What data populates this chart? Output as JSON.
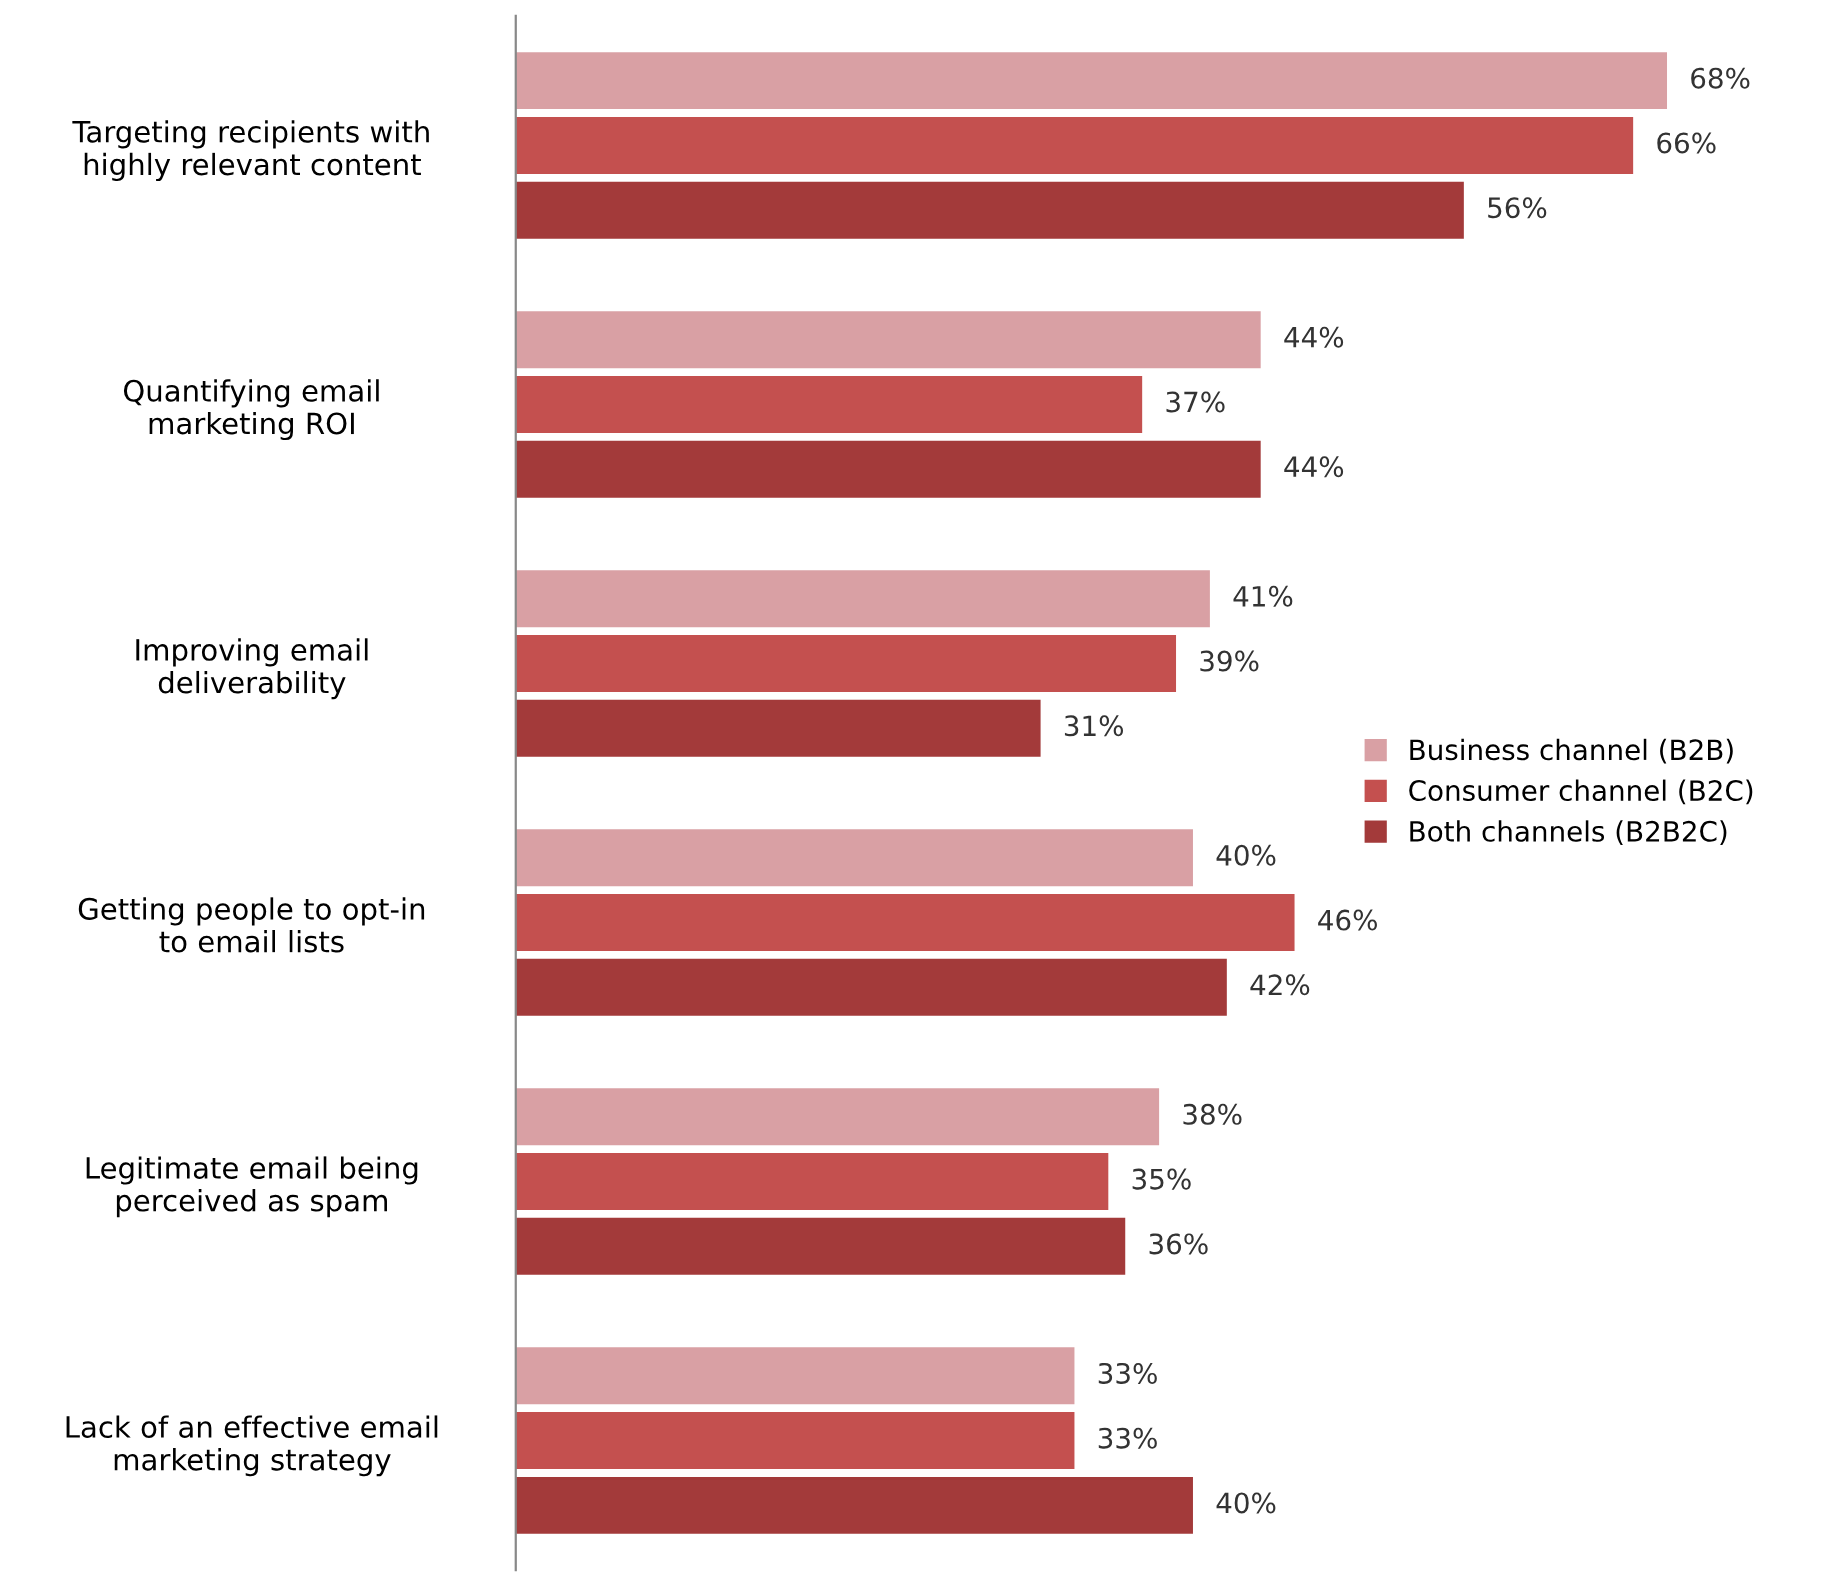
{
  "chart_data": {
    "type": "bar",
    "orientation": "horizontal",
    "categories": [
      "Targeting recipients with\nhighly relevant content",
      "Quantifying email\nmarketing ROI",
      "Improving email\ndeliverability",
      "Getting people to opt-in\nto email lists",
      "Legitimate email being\nperceived as spam",
      "Lack of an effective email\nmarketing strategy"
    ],
    "series": [
      {
        "name": "Business channel (B2B)",
        "color": "#d9a0a4",
        "values": [
          68,
          44,
          41,
          40,
          38,
          33
        ],
        "value_labels": [
          "68%",
          "44%",
          "41%",
          "40%",
          "38%",
          "33%"
        ]
      },
      {
        "name": "Consumer channel (B2C)",
        "color": "#c4504f",
        "values": [
          66,
          37,
          39,
          46,
          35,
          33
        ],
        "value_labels": [
          "66%",
          "37%",
          "39%",
          "46%",
          "35%",
          "33%"
        ]
      },
      {
        "name": "Both channels (B2B2C)",
        "color": "#a33a3a",
        "values": [
          56,
          44,
          31,
          42,
          36,
          40
        ],
        "value_labels": [
          "56%",
          "44%",
          "31%",
          "42%",
          "36%",
          "40%"
        ]
      }
    ],
    "legend": "right"
  }
}
